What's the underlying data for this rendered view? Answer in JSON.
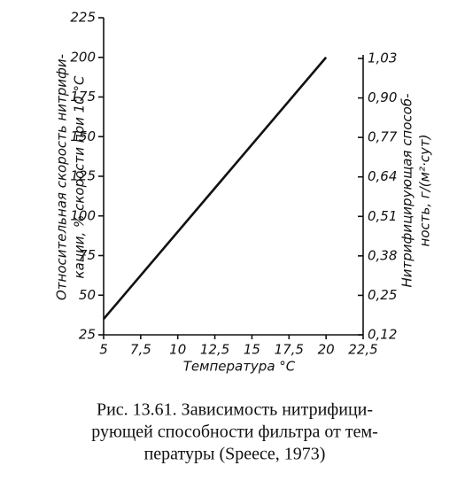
{
  "chart_data": {
    "type": "line",
    "x_label": "Температура °С",
    "y_label": [
      "Относительная скорость нитрифи-",
      "кации, % скорости при 10 °С"
    ],
    "y2_label": [
      "Нитрифицирующая способ-",
      "ность, г/(м²·сут)"
    ],
    "caption": [
      "Рис. 13.61. Зависимость нитрифици-",
      "рующей способности фильтра от тем-",
      "пературы (Speece, 1973)"
    ],
    "x": [
      5,
      20
    ],
    "values": [
      35,
      200
    ],
    "color": "#111111",
    "xlim": [
      5,
      22.5
    ],
    "xticks": [
      5,
      {
        "value": 7.5,
        "label": "7,5"
      },
      10,
      {
        "value": 12.5,
        "label": "12,5"
      },
      15,
      {
        "value": 17.5,
        "label": "17,5"
      },
      20,
      {
        "value": 22.5,
        "label": "22,5"
      }
    ],
    "ylim": [
      25,
      225
    ],
    "yticks": [
      25,
      50,
      75,
      100,
      125,
      150,
      175,
      200,
      225
    ],
    "y2lim": [
      0.12,
      1.03
    ],
    "y2ticks": [
      {
        "value": 0.12,
        "label": "0,12"
      },
      {
        "value": 0.25,
        "label": "0,25"
      },
      {
        "value": 0.38,
        "label": "0,38"
      },
      {
        "value": 0.51,
        "label": "0,51"
      },
      {
        "value": 0.64,
        "label": "0,64"
      },
      {
        "value": 0.77,
        "label": "0,77"
      },
      {
        "value": 0.9,
        "label": "0,90"
      },
      {
        "value": 1.03,
        "label": "1,03"
      }
    ]
  }
}
